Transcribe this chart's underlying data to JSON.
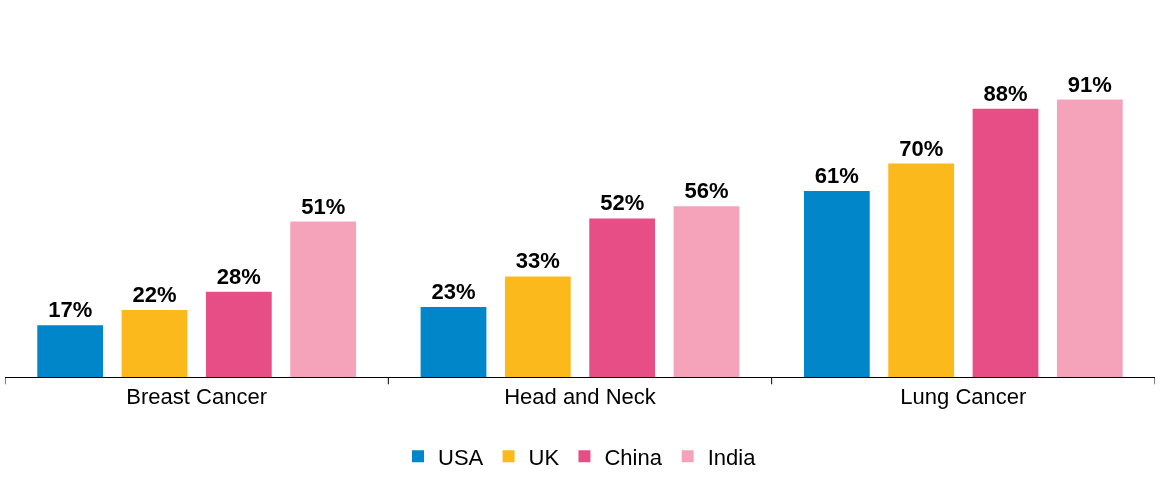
{
  "chart_data": {
    "type": "bar",
    "categories": [
      "Breast Cancer",
      "Head and Neck",
      "Lung Cancer"
    ],
    "series": [
      {
        "name": "USA",
        "color": "#0086c9",
        "values": [
          17,
          23,
          61
        ],
        "value_labels": [
          "17%",
          "23%",
          "61%"
        ]
      },
      {
        "name": "UK",
        "color": "#fbb91c",
        "values": [
          22,
          33,
          70
        ],
        "value_labels": [
          "22%",
          "33%",
          "70%"
        ]
      },
      {
        "name": "China",
        "color": "#e84e86",
        "values": [
          28,
          52,
          88
        ],
        "value_labels": [
          "28%",
          "52%",
          "88%"
        ]
      },
      {
        "name": "India",
        "color": "#f5a3bb",
        "values": [
          51,
          56,
          91
        ],
        "value_labels": [
          "51%",
          "56%",
          "91%"
        ]
      }
    ],
    "legend": "bottom"
  }
}
